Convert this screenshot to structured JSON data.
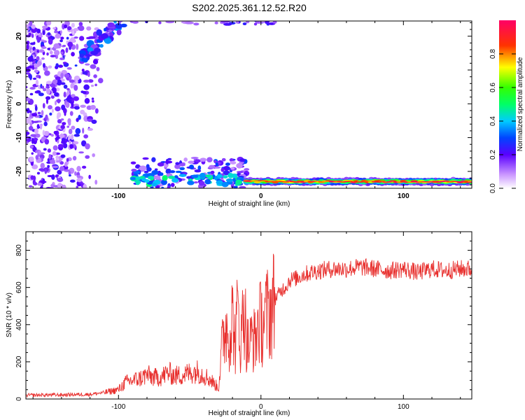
{
  "title": "S202.2025.361.12.52.R20",
  "colors": {
    "snr_line": "#e8302e",
    "frame": "#000000",
    "background": "#ffffff"
  },
  "chart_data": [
    {
      "type": "heatmap",
      "title": "",
      "xlabel": "Height of straight line (km)",
      "ylabel": "Frequency (Hz)",
      "xlim": [
        -165,
        148
      ],
      "ylim": [
        -25,
        24.5
      ],
      "x_ticks": [
        -100,
        0,
        100
      ],
      "y_ticks": [
        -20,
        -10,
        0,
        10,
        20
      ],
      "grid": false,
      "colorbar": {
        "label": "Normalized spectral amplitude",
        "range": [
          0,
          1
        ],
        "ticks": [
          0.0,
          0.2,
          0.4,
          0.6,
          0.8
        ],
        "scale": "rainbow (white-violet-blue-cyan-green-yellow-red-magenta)"
      },
      "features": [
        {
          "name": "strong band near -23 Hz",
          "x_range": [
            -10,
            148
          ],
          "freq": -23,
          "amplitude": 0.85
        },
        {
          "name": "scattered blobs near -22 Hz",
          "x_range": [
            -90,
            -10
          ],
          "freq": -22,
          "amplitude": 0.4
        },
        {
          "name": "diagonal ridge",
          "x_range": [
            -125,
            -100
          ],
          "freq_range": [
            14,
            24
          ],
          "amplitude": 0.3
        },
        {
          "name": "broadband noise",
          "x_range": [
            -165,
            -110
          ],
          "freq_range": [
            -25,
            24
          ],
          "amplitude": 0.12
        }
      ]
    },
    {
      "type": "line",
      "title": "",
      "xlabel": "Height of straight line (km)",
      "ylabel": "SNR (10 * v/v)",
      "xlim": [
        -165,
        148
      ],
      "ylim": [
        0,
        900
      ],
      "x_ticks": [
        -100,
        0,
        100
      ],
      "y_ticks": [
        0,
        200,
        400,
        600,
        800
      ],
      "grid": false,
      "series": [
        {
          "x": [
            -165,
            -150,
            -140,
            -130,
            -120,
            -110,
            -100,
            -95,
            -90,
            -85,
            -80,
            -75,
            -70,
            -65,
            -60,
            -55,
            -50,
            -45,
            -40,
            -35,
            -30,
            -27,
            -25,
            -22,
            -20,
            -18,
            -16,
            -14,
            -12,
            -10,
            -8,
            -6,
            -4,
            -2,
            0,
            2,
            5,
            8,
            10,
            12,
            15,
            18,
            20,
            25,
            30,
            40,
            50,
            60,
            70,
            80,
            90,
            100,
            110,
            120,
            130,
            140,
            148
          ],
          "values": [
            20,
            22,
            22,
            24,
            25,
            35,
            50,
            90,
            100,
            110,
            130,
            115,
            120,
            140,
            125,
            130,
            140,
            150,
            130,
            100,
            60,
            300,
            400,
            350,
            450,
            300,
            500,
            280,
            550,
            300,
            280,
            350,
            300,
            420,
            400,
            430,
            460,
            500,
            540,
            560,
            590,
            610,
            640,
            650,
            670,
            690,
            700,
            700,
            710,
            700,
            690,
            700,
            680,
            700,
            690,
            700,
            700
          ]
        }
      ]
    }
  ]
}
